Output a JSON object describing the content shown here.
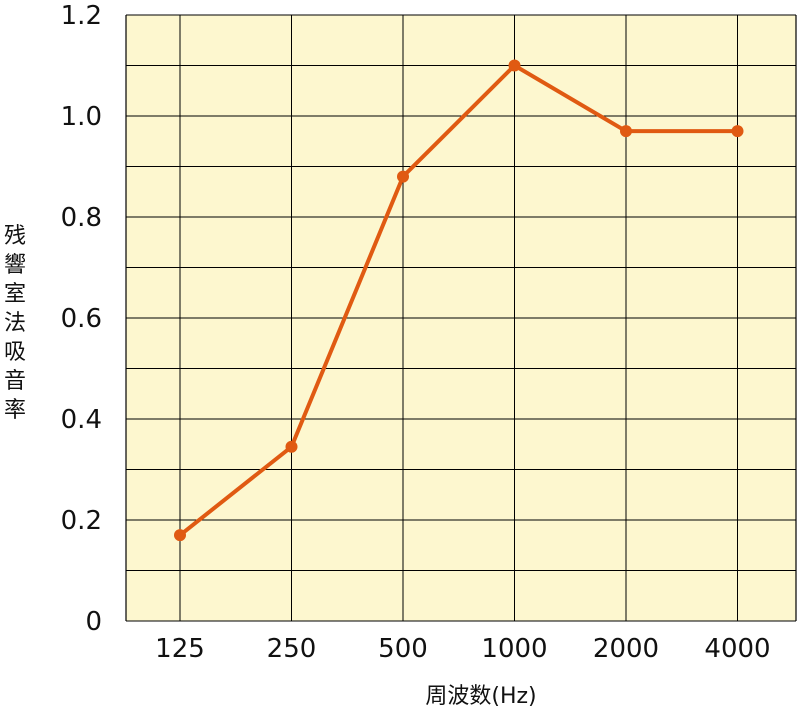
{
  "chart_data": {
    "type": "line",
    "categories": [
      "125",
      "250",
      "500",
      "1000",
      "2000",
      "4000"
    ],
    "series": [
      {
        "values": [
          0.17,
          0.345,
          0.88,
          1.1,
          0.97,
          0.97
        ]
      }
    ],
    "xlabel": "周波数(Hz)",
    "ylabel": "残響室法吸音率",
    "ylim": [
      0,
      1.2
    ],
    "yticks": [
      "0",
      "0.2",
      "0.4",
      "0.6",
      "0.8",
      "1.0",
      "1.2"
    ],
    "grid": true,
    "colors": {
      "line": "#e05a12",
      "background": "#fdf7cf",
      "grid": "#000000"
    }
  }
}
